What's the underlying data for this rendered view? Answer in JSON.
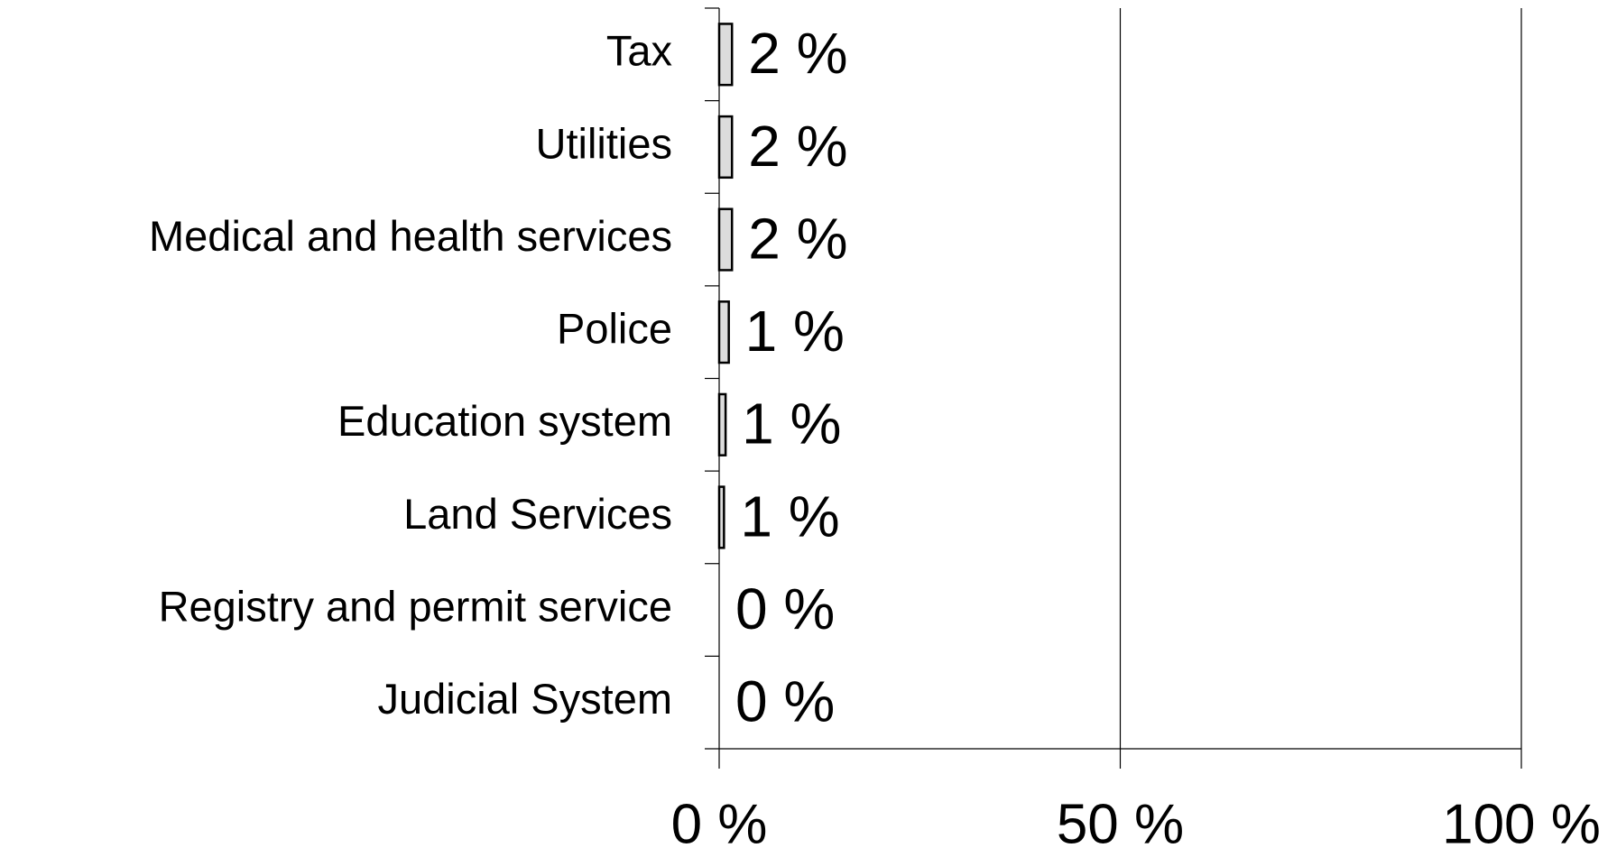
{
  "chart_data": {
    "type": "bar",
    "orientation": "horizontal",
    "categories": [
      "Tax",
      "Utilities",
      "Medical and health services",
      "Police",
      "Education system",
      "Land Services",
      "Registry and permit service",
      "Judicial System"
    ],
    "values": [
      1.6,
      1.6,
      1.6,
      1.2,
      0.8,
      0.6,
      0,
      0
    ],
    "value_labels": [
      "2 %",
      "2 %",
      "2 %",
      "1 %",
      "1 %",
      "1 %",
      "0 %",
      "0 %"
    ],
    "color": "#dcdcdc",
    "xlim": [
      0,
      100
    ],
    "xticks": [
      {
        "value": 0,
        "label": "0 %"
      },
      {
        "value": 50,
        "label": "50 %"
      },
      {
        "value": 100,
        "label": "100 %"
      }
    ],
    "grid": true
  }
}
